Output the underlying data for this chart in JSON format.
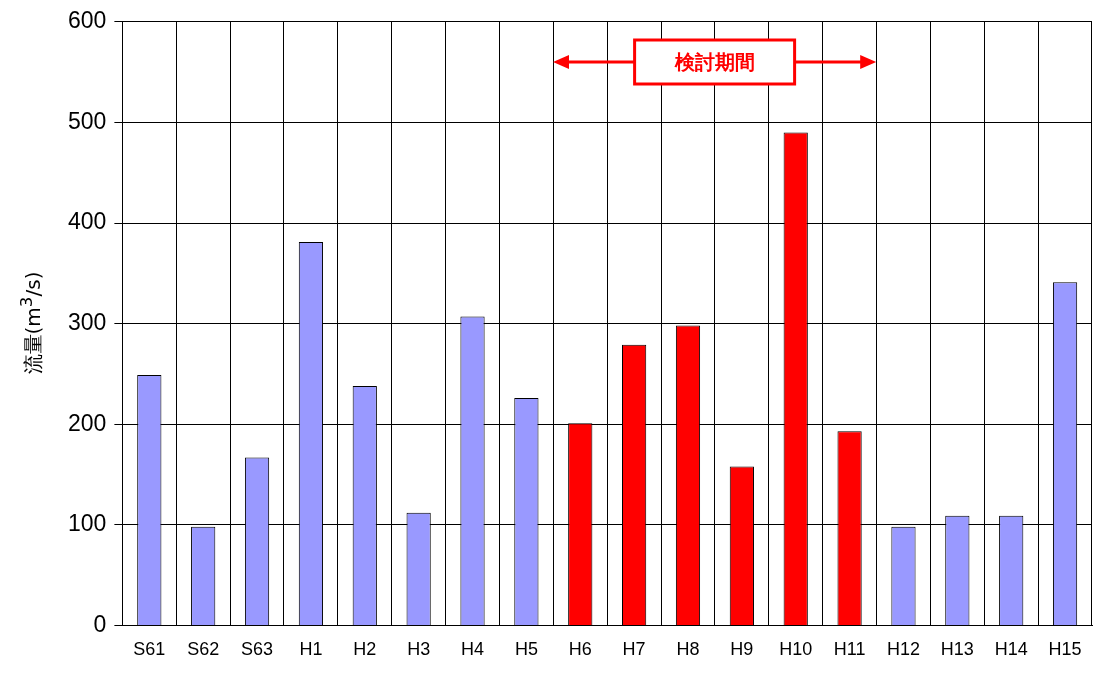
{
  "chart_data": {
    "type": "bar",
    "ylabel": "流量(m$^{3}$/s)",
    "categories": [
      "S61",
      "S62",
      "S63",
      "H1",
      "H2",
      "H3",
      "H4",
      "H5",
      "H6",
      "H7",
      "H8",
      "H9",
      "H10",
      "H11",
      "H12",
      "H13",
      "H14",
      "H15"
    ],
    "values": [
      249,
      98,
      167,
      381,
      238,
      112,
      307,
      226,
      201,
      279,
      298,
      158,
      490,
      193,
      98,
      109,
      109,
      341
    ],
    "colors": [
      "#9999ff",
      "#9999ff",
      "#9999ff",
      "#9999ff",
      "#9999ff",
      "#9999ff",
      "#9999ff",
      "#9999ff",
      "#ff0000",
      "#ff0000",
      "#ff0000",
      "#ff0000",
      "#ff0000",
      "#ff0000",
      "#9999ff",
      "#9999ff",
      "#9999ff",
      "#9999ff"
    ],
    "ylim": [
      0,
      600
    ],
    "yticks": [
      0,
      100,
      200,
      300,
      400,
      500,
      600
    ],
    "grid": true,
    "annotations": [
      "検討期間"
    ]
  }
}
